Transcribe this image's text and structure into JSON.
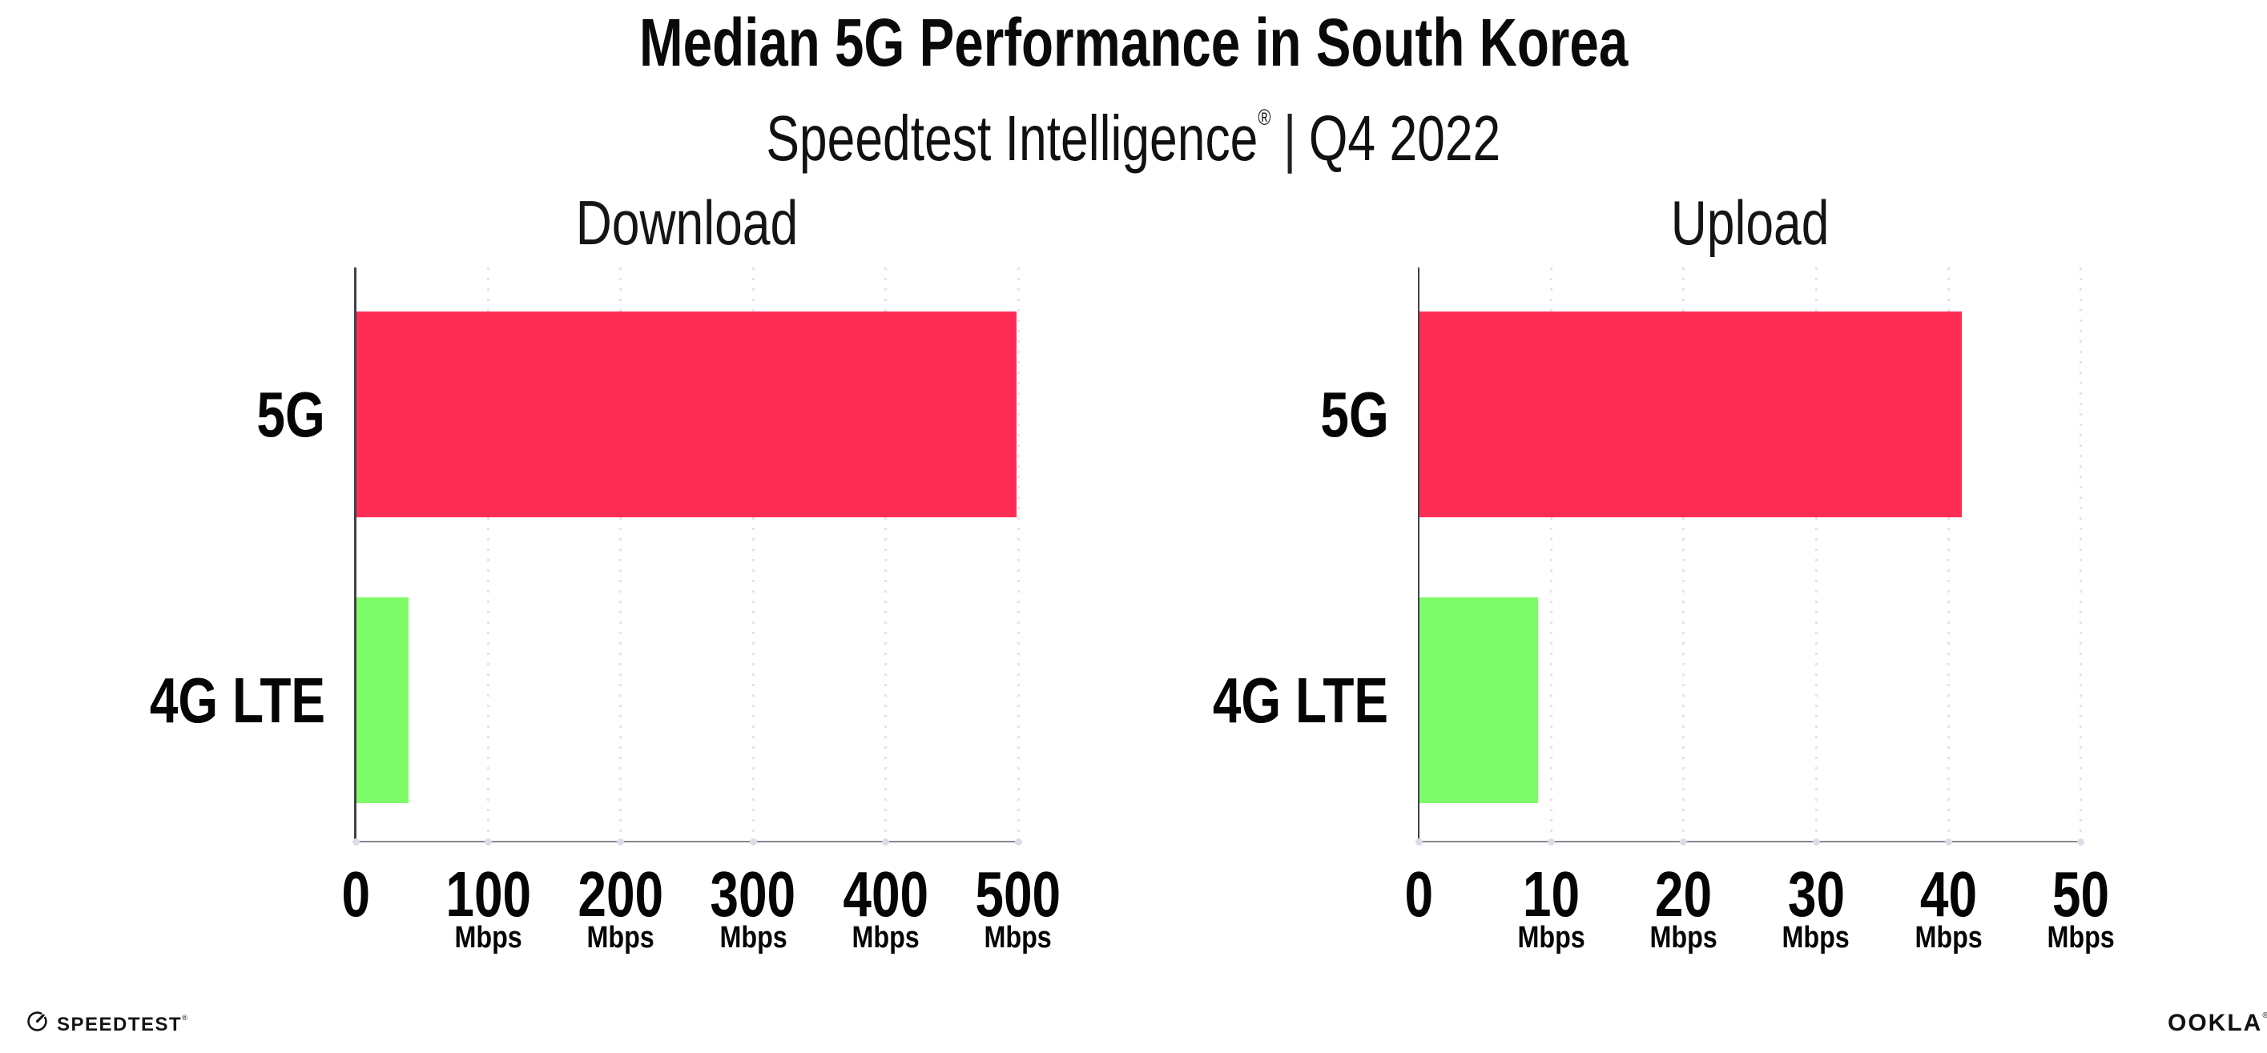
{
  "header": {
    "title": "Median 5G Performance in South Korea",
    "subtitle": {
      "brand": "Speedtest Intelligence",
      "mark": "®",
      "divider": "|",
      "period": "Q4 2022"
    }
  },
  "chart_data": {
    "type": "bar",
    "orientation": "horizontal",
    "title": "Median 5G Performance in South Korea",
    "subtitle": "Speedtest Intelligence® | Q4 2022",
    "grid": "vertical-dotted",
    "legend": "none",
    "categories": [
      "5G",
      "4G LTE"
    ],
    "colors": {
      "5G": "#FF2D55",
      "4G LTE": "#7EFB68"
    },
    "panels": [
      {
        "title": "Download",
        "categories": [
          "5G",
          "4G LTE"
        ],
        "values_mbps": [
          499,
          40
        ],
        "xlim": [
          0,
          500
        ],
        "xticks": [
          0,
          100,
          200,
          300,
          400,
          500
        ],
        "tick_unit": "Mbps"
      },
      {
        "title": "Upload",
        "categories": [
          "5G",
          "4G LTE"
        ],
        "values_mbps": [
          41,
          9
        ],
        "xlim": [
          0,
          50
        ],
        "xticks": [
          0,
          10,
          20,
          30,
          40,
          50
        ],
        "tick_unit": "Mbps"
      }
    ]
  },
  "footer": {
    "speedtest_label": "SPEEDTEST",
    "speedtest_mark": "®",
    "ookla_label": "OOKLA",
    "ookla_mark": "®"
  }
}
